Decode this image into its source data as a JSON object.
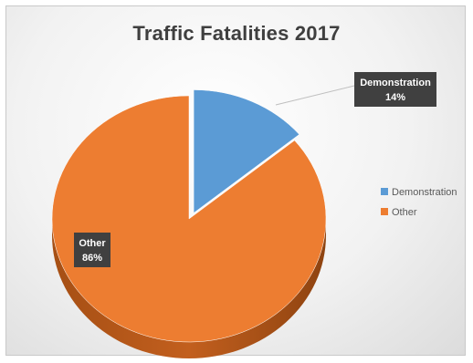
{
  "chart_data": {
    "type": "pie",
    "title": "Traffic Fatalities 2017",
    "categories": [
      "Demonstration",
      "Other"
    ],
    "values": [
      14,
      86
    ],
    "data_labels": [
      {
        "name": "Demonstration",
        "value": "14%"
      },
      {
        "name": "Other",
        "value": "86%"
      }
    ],
    "colors": [
      "#5b9bd5",
      "#ed7d31"
    ],
    "legend": {
      "position": "right",
      "entries": [
        "Demonstration",
        "Other"
      ]
    },
    "style": "3d-exploded"
  }
}
